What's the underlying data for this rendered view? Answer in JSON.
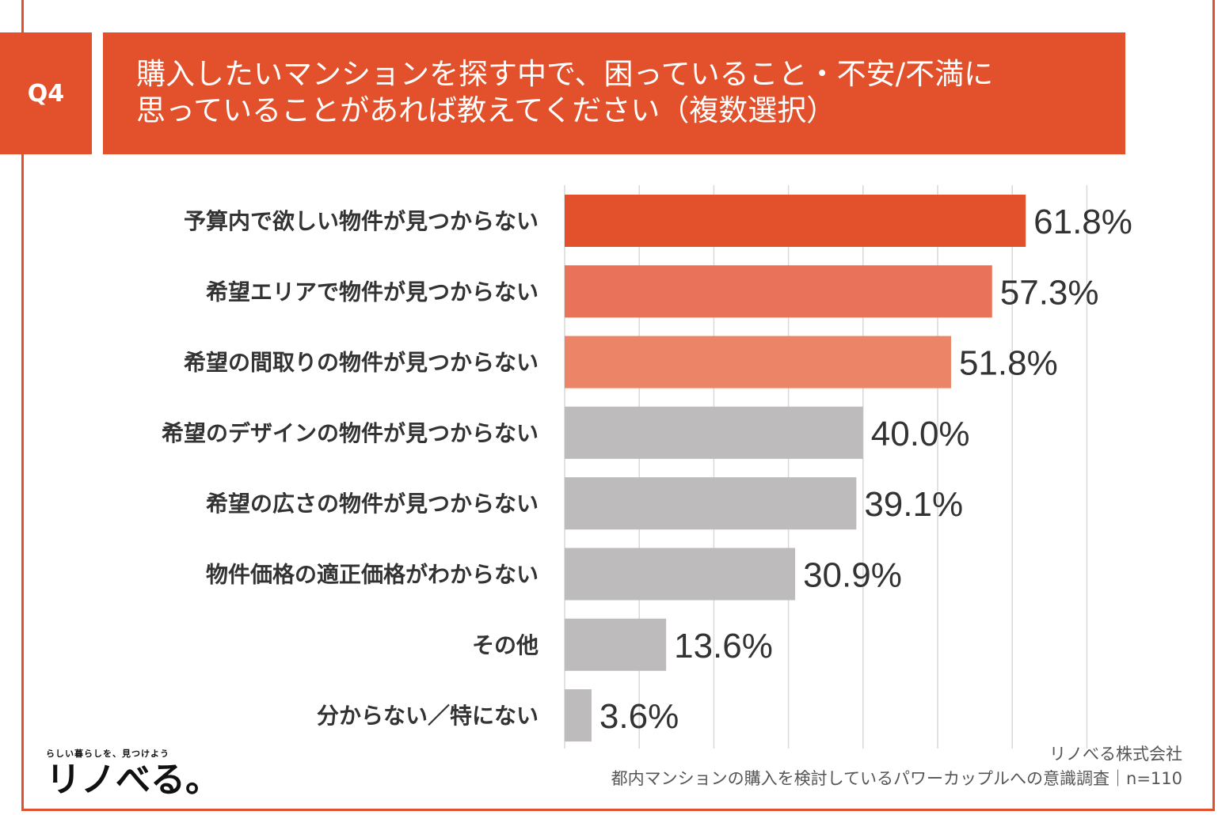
{
  "badge": "Q4",
  "title": {
    "line1": "購入したいマンションを探す中で、困っていること・不安/不満に",
    "line2": "思っていることがあれば教えてください（複数選択）"
  },
  "chart_data": {
    "type": "bar",
    "orientation": "horizontal",
    "categories": [
      "予算内で欲しい物件が見つからない",
      "希望エリアで物件が見つからない",
      "希望の間取りの物件が見つからない",
      "希望のデザインの物件が見つからない",
      "希望の広さの物件が見つからない",
      "物件価格の適正価格がわからない",
      "その他",
      "分からない／特にない"
    ],
    "values": [
      61.8,
      57.3,
      51.8,
      40.0,
      39.1,
      30.9,
      13.6,
      3.6
    ],
    "value_labels": [
      "61.8%",
      "57.3%",
      "51.8%",
      "40.0%",
      "39.1%",
      "30.9%",
      "13.6%",
      "3.6%"
    ],
    "bar_colors": [
      "#e2512b",
      "#e9735a",
      "#ec8468",
      "#bdbbbc",
      "#bdbbbc",
      "#bdbbbc",
      "#bdbbbc",
      "#bdbbbc"
    ],
    "xlim": [
      0,
      70
    ],
    "grid": true
  },
  "footer": {
    "company": "リノべる株式会社",
    "survey": "都内マンションの購入を検討しているパワーカップルへの意識調査｜n=110"
  },
  "logo": {
    "tagline": "らしい暮らしを、見つけよう",
    "name": "リノべる。"
  },
  "colors": {
    "accent": "#e2512b",
    "gray_bar": "#bdbbbc"
  }
}
